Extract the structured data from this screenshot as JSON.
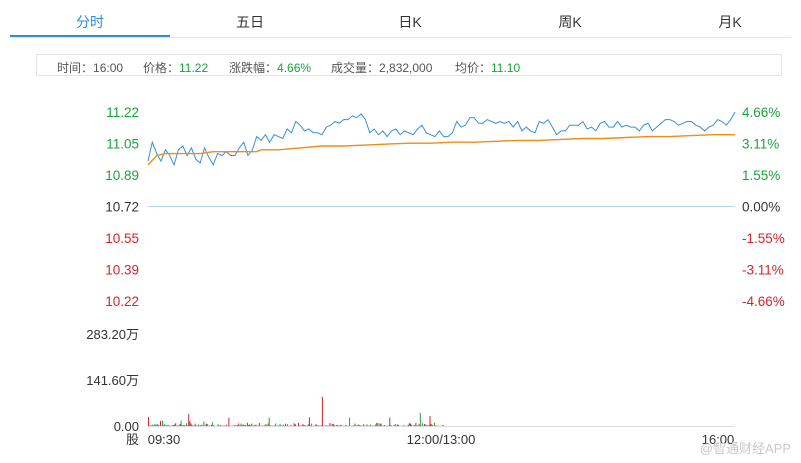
{
  "tabs": [
    {
      "label": "分时",
      "active": true
    },
    {
      "label": "五日",
      "active": false
    },
    {
      "label": "日K",
      "active": false
    },
    {
      "label": "周K",
      "active": false
    },
    {
      "label": "月K",
      "active": false
    }
  ],
  "info": {
    "time_label": "时间：",
    "time_value": "16:00",
    "price_label": "价格：",
    "price_value": "11.22",
    "change_label": "涨跌幅：",
    "change_value": "4.66%",
    "volume_label": "成交量：",
    "volume_value": "2,832,000",
    "avg_label": "均价：",
    "avg_value": "11.10"
  },
  "colors": {
    "up": "#d0262c",
    "down": "#1aa33c",
    "price_line": "#3a8fd6",
    "avg_line": "#ef8c1c",
    "accent": "#2e8fd8"
  },
  "chart_data": {
    "type": "line",
    "title": "",
    "price_ticks": [
      "11.22",
      "11.05",
      "10.89",
      "10.72",
      "10.55",
      "10.39",
      "10.22"
    ],
    "percent_ticks": [
      "4.66%",
      "3.11%",
      "1.55%",
      "0.00%",
      "-1.55%",
      "-3.11%",
      "-4.66%"
    ],
    "ylim": [
      10.22,
      11.22
    ],
    "prev_close": 10.72,
    "x_ticks": [
      "09:30",
      "12:00/13:00",
      "16:00"
    ],
    "volume_ticks": [
      "283.20万",
      "141.60万",
      "0.00"
    ],
    "volume_ylim": [
      0,
      283.2
    ],
    "volume_axis_label": "股",
    "series": [
      {
        "name": "价格",
        "x": [
          0,
          2,
          4,
          6,
          8,
          10,
          12,
          14,
          16,
          18,
          20,
          22,
          24,
          26,
          28,
          30,
          32,
          34,
          36,
          38,
          40,
          42,
          44,
          46,
          48,
          50,
          52,
          54,
          56,
          58,
          60,
          62,
          64,
          66,
          68,
          70,
          72,
          74,
          76,
          78,
          80,
          82,
          84,
          86,
          88,
          90,
          92,
          94,
          96,
          98,
          100,
          102,
          104,
          106,
          108,
          110,
          112,
          114,
          116,
          118,
          120,
          122,
          124,
          126,
          128,
          130,
          132,
          134,
          136,
          138,
          140,
          142,
          144,
          146,
          148,
          150,
          152,
          154,
          156,
          158,
          160,
          162,
          164,
          166,
          168,
          170,
          172,
          174,
          176,
          178,
          180,
          182,
          184,
          186,
          188,
          190,
          192,
          194,
          196,
          198,
          200,
          202,
          204,
          206,
          208,
          210,
          212,
          214,
          216,
          218,
          220,
          222,
          224,
          226,
          228,
          230,
          232,
          234,
          236,
          238,
          240,
          242,
          244,
          246,
          248,
          250,
          252,
          254,
          256,
          258,
          260,
          262,
          264,
          266,
          268,
          270
        ],
        "values": [
          10.96,
          11.06,
          11.0,
          10.96,
          11.02,
          10.99,
          10.94,
          11.02,
          11.04,
          10.99,
          11.03,
          10.97,
          10.95,
          11.03,
          10.98,
          10.94,
          11.0,
          10.99,
          11.01,
          10.99,
          10.99,
          11.03,
          11.06,
          10.99,
          11.02,
          11.09,
          11.07,
          11.1,
          11.06,
          11.1,
          11.09,
          11.08,
          11.13,
          11.11,
          11.17,
          11.15,
          11.12,
          11.13,
          11.11,
          11.11,
          11.1,
          11.14,
          11.15,
          11.17,
          11.16,
          11.18,
          11.18,
          11.2,
          11.19,
          11.21,
          11.18,
          11.11,
          11.13,
          11.1,
          11.12,
          11.09,
          11.12,
          11.13,
          11.1,
          11.12,
          11.11,
          11.1,
          11.13,
          11.15,
          11.11,
          11.1,
          11.09,
          11.12,
          11.09,
          11.09,
          11.11,
          11.17,
          11.14,
          11.15,
          11.19,
          11.19,
          11.16,
          11.16,
          11.18,
          11.17,
          11.16,
          11.17,
          11.16,
          11.17,
          11.14,
          11.17,
          11.12,
          11.14,
          11.12,
          11.11,
          11.17,
          11.16,
          11.18,
          11.14,
          11.1,
          11.12,
          11.12,
          11.15,
          11.15,
          11.15,
          11.17,
          11.13,
          11.14,
          11.12,
          11.16,
          11.17,
          11.14,
          11.14,
          11.17,
          11.14,
          11.15,
          11.14,
          11.14,
          11.12,
          11.15,
          11.16,
          11.12,
          11.14,
          11.16,
          11.18,
          11.18,
          11.17,
          11.15,
          11.16,
          11.17,
          11.17,
          11.15,
          11.14,
          11.12,
          11.14,
          11.15,
          11.18,
          11.17,
          11.15,
          11.18,
          11.22
        ]
      },
      {
        "name": "均价",
        "x": [
          0,
          4,
          8,
          12,
          16,
          20,
          24,
          30,
          40,
          50,
          52,
          60,
          70,
          80,
          90,
          100,
          110,
          120,
          130,
          140,
          150,
          160,
          170,
          180,
          190,
          200,
          210,
          220,
          230,
          240,
          250,
          260,
          270
        ],
        "values": [
          10.94,
          10.99,
          11.0,
          11.0,
          11.0,
          11.0,
          11.0,
          11.01,
          11.01,
          11.01,
          11.02,
          11.02,
          11.03,
          11.04,
          11.04,
          11.045,
          11.05,
          11.055,
          11.055,
          11.06,
          11.06,
          11.065,
          11.07,
          11.07,
          11.075,
          11.08,
          11.08,
          11.085,
          11.09,
          11.09,
          11.095,
          11.1,
          11.1
        ]
      }
    ]
  },
  "watermark": "@智通财经APP"
}
